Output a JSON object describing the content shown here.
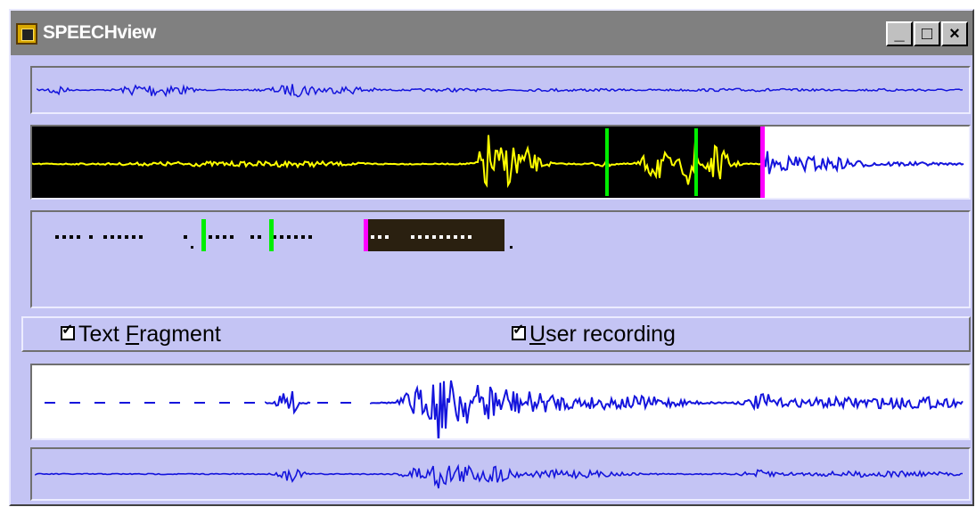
{
  "window": {
    "title": "SPEECHview",
    "controls": {
      "minimize": "_",
      "maximize": "□",
      "close": "×"
    }
  },
  "checkboxes": [
    {
      "prefix": "Text ",
      "mnemonic": "F",
      "suffix": "ragment",
      "checked": true
    },
    {
      "prefix": "",
      "mnemonic": "U",
      "suffix": "ser recording",
      "checked": true
    }
  ],
  "colors": {
    "window_bg": "#c4c4f4",
    "titlebar": "#808080",
    "waveform_blue": "#1414dc",
    "waveform_yellow": "#ffff00",
    "marker_green": "#00ee00",
    "marker_magenta": "#ff00ff",
    "played_bg": "#000000",
    "text_highlight_bg": "#2a2010"
  },
  "icons": [
    "app-icon",
    "minimize-icon",
    "maximize-icon",
    "close-icon",
    "check-icon"
  ],
  "playback": {
    "main_position": 0.76,
    "markers": [
      0.61,
      0.705
    ]
  }
}
